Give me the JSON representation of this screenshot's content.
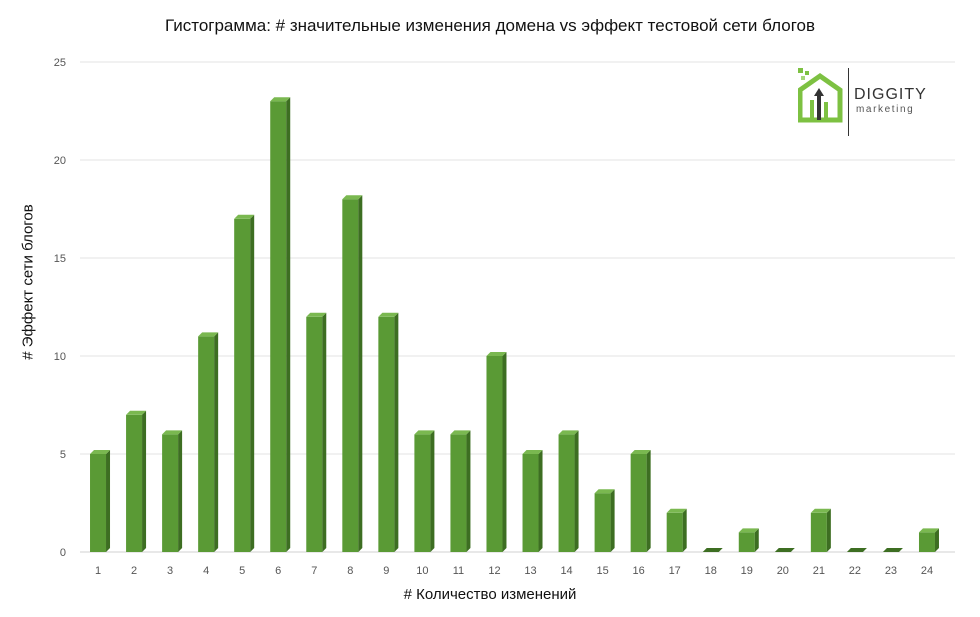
{
  "chart_data": {
    "type": "bar",
    "title": "Гистограмма: # значительные изменения домена vs эффект тестовой сети блогов",
    "xlabel": "# Количество изменений",
    "ylabel": "# Эффект сети блогов",
    "categories": [
      "1",
      "2",
      "3",
      "4",
      "5",
      "6",
      "7",
      "8",
      "9",
      "10",
      "11",
      "12",
      "13",
      "14",
      "15",
      "16",
      "17",
      "18",
      "19",
      "20",
      "21",
      "22",
      "23",
      "24"
    ],
    "values": [
      5,
      7,
      6,
      11,
      17,
      23,
      12,
      18,
      12,
      6,
      6,
      10,
      5,
      6,
      3,
      5,
      2,
      0,
      1,
      0,
      2,
      0,
      0,
      1
    ],
    "ylim": [
      0,
      25
    ],
    "yticks": [
      0,
      5,
      10,
      15,
      20,
      25
    ],
    "grid": true,
    "bar_color": "#5a9a35",
    "bar_side_color": "#3d6e22",
    "bar_top_color": "#7ab850"
  },
  "logo": {
    "name": "DIGGITY",
    "sub": "marketing",
    "colors": {
      "primary": "#7dc142",
      "secondary": "#333333"
    }
  }
}
